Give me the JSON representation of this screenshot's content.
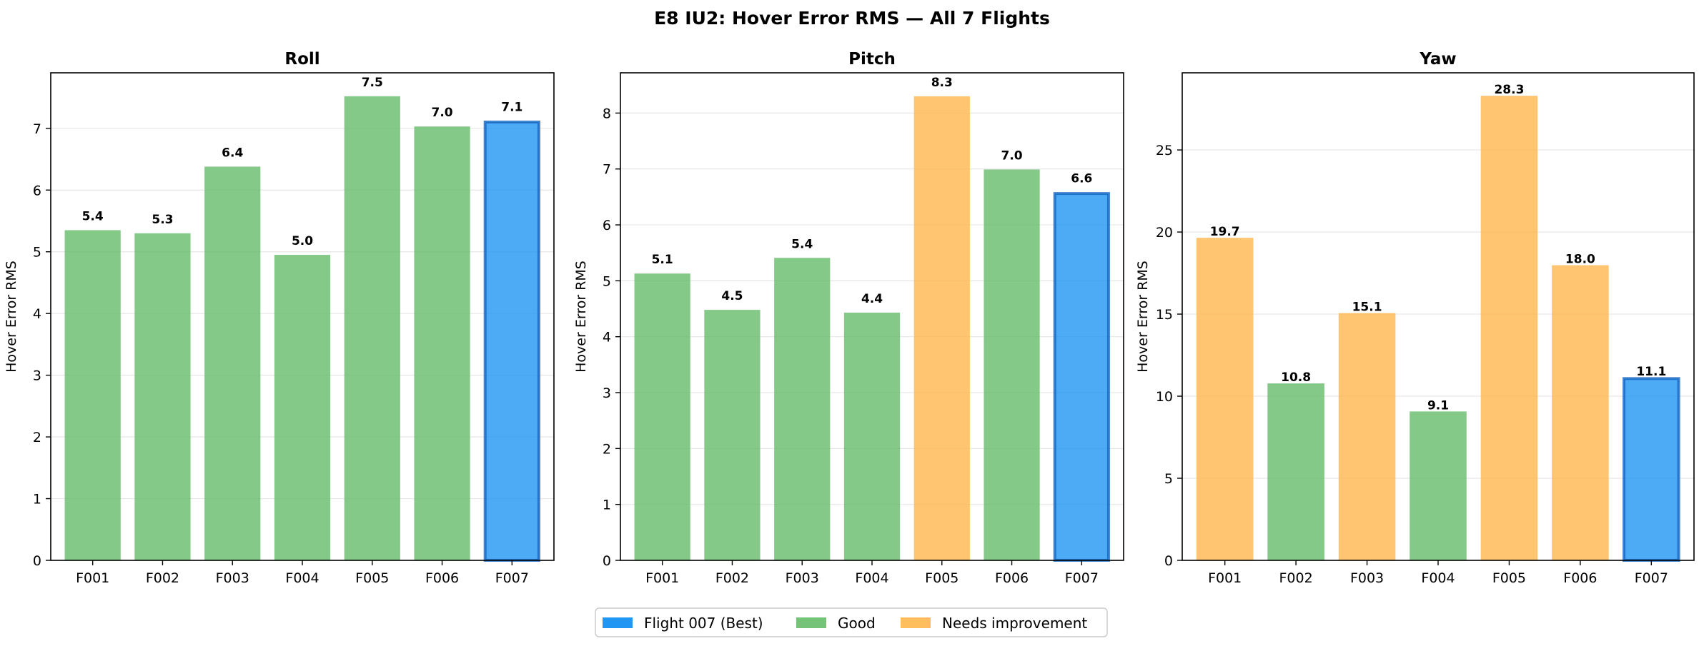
{
  "figure_title": "E8 IU2: Hover Error RMS — All 7 Flights",
  "colors": {
    "best": "#2196F3",
    "best_edge": "#1565C0",
    "good": "#66BB6A",
    "needs": "#FFB74D"
  },
  "legend": {
    "placement": "bottom-center",
    "entries": [
      {
        "label": "Flight 007 (Best)",
        "status": "best"
      },
      {
        "label": "Good",
        "status": "good"
      },
      {
        "label": "Needs improvement",
        "status": "needs"
      }
    ]
  },
  "chart_data": [
    {
      "type": "bar",
      "title": "Roll",
      "ylabel": "Hover Error RMS",
      "categories": [
        "F001",
        "F002",
        "F003",
        "F004",
        "F005",
        "F006",
        "F007"
      ],
      "values": [
        5.35,
        5.3,
        6.38,
        4.95,
        7.52,
        7.03,
        7.12
      ],
      "labels": [
        "5.4",
        "5.3",
        "6.4",
        "5.0",
        "7.5",
        "7.0",
        "7.1"
      ],
      "status": [
        "good",
        "good",
        "good",
        "good",
        "good",
        "good",
        "best"
      ],
      "ylim": [
        0,
        7.9
      ],
      "yticks": [
        0,
        1,
        2,
        3,
        4,
        5,
        6,
        7
      ],
      "grid": "y"
    },
    {
      "type": "bar",
      "title": "Pitch",
      "ylabel": "Hover Error RMS",
      "categories": [
        "F001",
        "F002",
        "F003",
        "F004",
        "F005",
        "F006",
        "F007"
      ],
      "values": [
        5.13,
        4.48,
        5.41,
        4.43,
        8.3,
        6.99,
        6.58
      ],
      "labels": [
        "5.1",
        "4.5",
        "5.4",
        "4.4",
        "8.3",
        "7.0",
        "6.6"
      ],
      "status": [
        "good",
        "good",
        "good",
        "good",
        "needs",
        "good",
        "best"
      ],
      "ylim": [
        0,
        8.72
      ],
      "yticks": [
        0,
        1,
        2,
        3,
        4,
        5,
        6,
        7,
        8
      ],
      "grid": "y"
    },
    {
      "type": "bar",
      "title": "Yaw",
      "ylabel": "Hover Error RMS",
      "categories": [
        "F001",
        "F002",
        "F003",
        "F004",
        "F005",
        "F006",
        "F007"
      ],
      "values": [
        19.65,
        10.78,
        15.06,
        9.07,
        28.3,
        17.98,
        11.14
      ],
      "labels": [
        "19.7",
        "10.8",
        "15.1",
        "9.1",
        "28.3",
        "18.0",
        "11.1"
      ],
      "status": [
        "needs",
        "good",
        "needs",
        "good",
        "needs",
        "needs",
        "best"
      ],
      "ylim": [
        0,
        29.7
      ],
      "yticks": [
        0,
        5,
        10,
        15,
        20,
        25
      ],
      "grid": "y"
    }
  ]
}
